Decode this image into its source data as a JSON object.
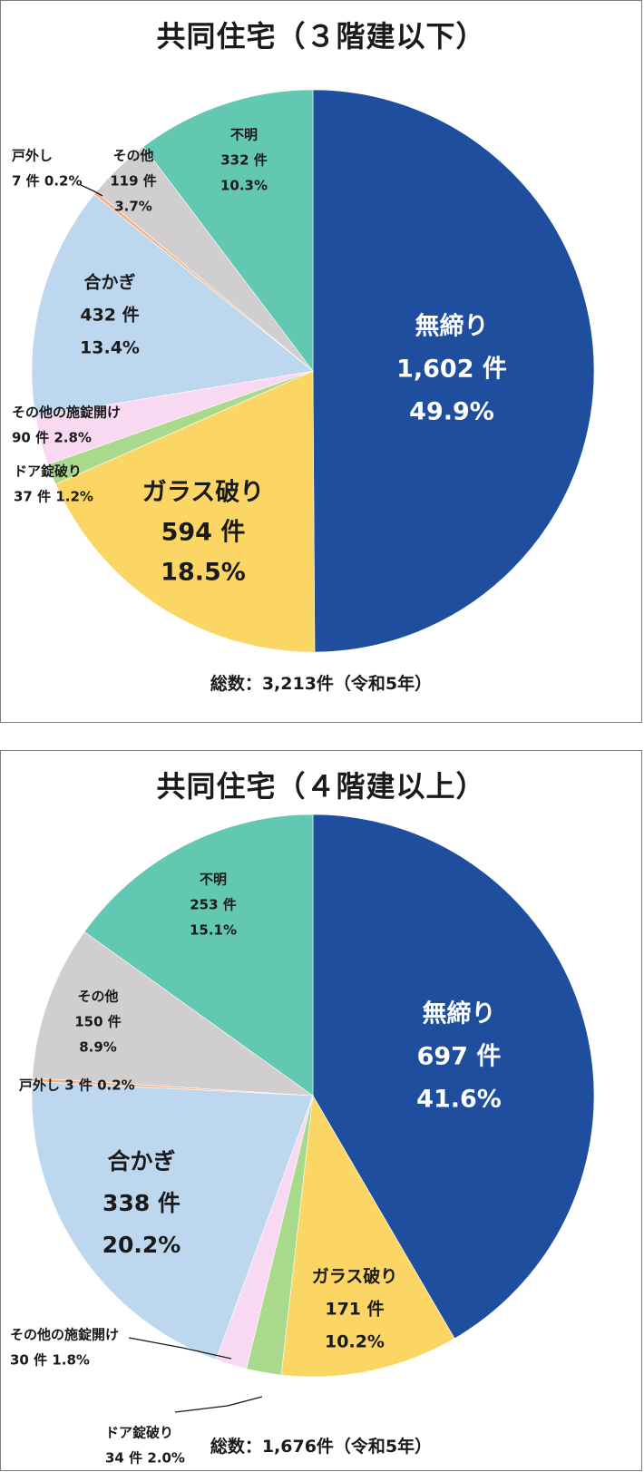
{
  "chart_data": [
    {
      "type": "pie",
      "title": "共同住宅（３階建以下）",
      "total_label": "総数：3,213件（令和5年）",
      "colors": {
        "無締り": "#1f4e9f",
        "ガラス破り": "#fcd665",
        "ドア錠破り": "#a9d98b",
        "その他の施錠開け": "#f9d9f2",
        "合かぎ": "#bdd7ee",
        "戸外し": "#f4b183",
        "その他": "#d0cece",
        "不明": "#63c8b1"
      },
      "slices": [
        {
          "label": "無締り",
          "count": "1,602 件",
          "percent": "49.9%",
          "value": 49.9
        },
        {
          "label": "ガラス破り",
          "count": "594 件",
          "percent": "18.5%",
          "value": 18.5
        },
        {
          "label": "ドア錠破り",
          "count": "37 件",
          "percent": "1.2%",
          "value": 1.2
        },
        {
          "label": "その他の施錠開け",
          "count": "90 件",
          "percent": "2.8%",
          "value": 2.8
        },
        {
          "label": "合かぎ",
          "count": "432 件",
          "percent": "13.4%",
          "value": 13.4
        },
        {
          "label": "戸外し",
          "count": "7 件",
          "percent": "0.2%",
          "value": 0.2
        },
        {
          "label": "その他",
          "count": "119 件",
          "percent": "3.7%",
          "value": 3.7
        },
        {
          "label": "不明",
          "count": "332 件",
          "percent": "10.3%",
          "value": 10.3
        }
      ]
    },
    {
      "type": "pie",
      "title": "共同住宅（４階建以上）",
      "total_label": "総数：1,676件（令和5年）",
      "colors": {
        "無締り": "#1f4e9f",
        "ガラス破り": "#fcd665",
        "ドア錠破り": "#a9d98b",
        "その他の施錠開け": "#f9d9f2",
        "合かぎ": "#bdd7ee",
        "戸外し": "#f4b183",
        "その他": "#d0cece",
        "不明": "#63c8b1"
      },
      "slices": [
        {
          "label": "無締り",
          "count": "697 件",
          "percent": "41.6%",
          "value": 41.6
        },
        {
          "label": "ガラス破り",
          "count": "171 件",
          "percent": "10.2%",
          "value": 10.2
        },
        {
          "label": "ドア錠破り",
          "count": "34 件",
          "percent": "2.0%",
          "value": 2.0
        },
        {
          "label": "その他の施錠開け",
          "count": "30 件",
          "percent": "1.8%",
          "value": 1.8
        },
        {
          "label": "合かぎ",
          "count": "338 件",
          "percent": "20.2%",
          "value": 20.2
        },
        {
          "label": "戸外し",
          "count": "3 件",
          "percent": "0.2%",
          "value": 0.2
        },
        {
          "label": "その他",
          "count": "150 件",
          "percent": "8.9%",
          "value": 8.9
        },
        {
          "label": "不明",
          "count": "253 件",
          "percent": "15.1%",
          "value": 15.1
        }
      ]
    }
  ]
}
